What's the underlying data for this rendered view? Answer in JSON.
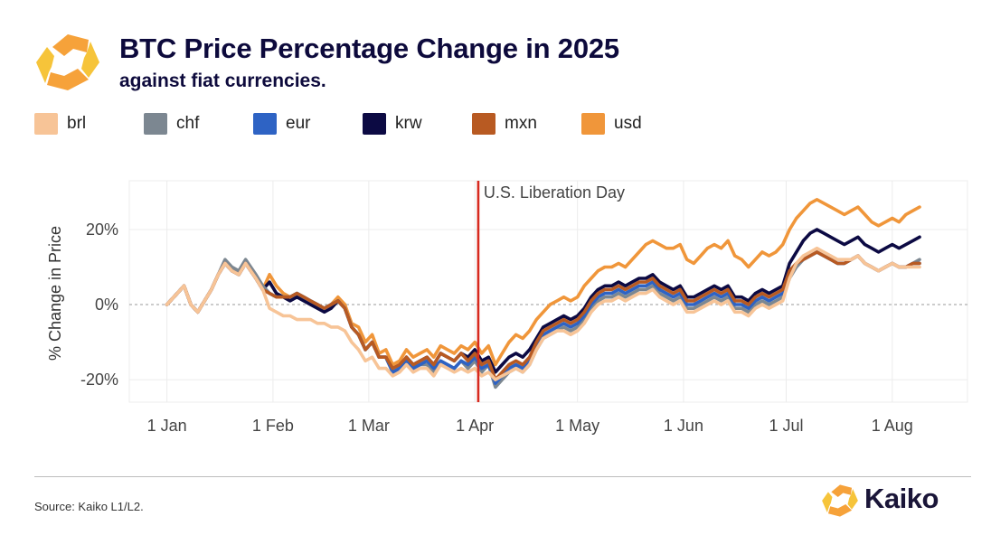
{
  "header": {
    "title": "BTC Price Percentage Change in 2025",
    "subtitle": "against fiat currencies."
  },
  "footer": {
    "source": "Source: Kaiko L1/L2.",
    "brand": "Kaiko"
  },
  "colors": {
    "brl": "#f7c497",
    "chf": "#7c8791",
    "eur": "#2e63c4",
    "krw": "#0c0a43",
    "mxn": "#b85a22",
    "usd": "#f0963a",
    "event_line": "#d72a1f",
    "logo_orange": "#f6a23a",
    "logo_yellow": "#f6c43a"
  },
  "chart_data": {
    "type": "line",
    "title": "BTC Price Percentage Change in 2025",
    "subtitle": "against fiat currencies.",
    "ylabel": "% Change in Price",
    "xlabel": "",
    "x_ticks": [
      "1 Jan",
      "1 Feb",
      "1 Mar",
      "1 Apr",
      "1 May",
      "1 Jun",
      "1 Jul",
      "1 Aug"
    ],
    "x_tick_days": [
      0,
      31,
      59,
      90,
      120,
      151,
      181,
      212
    ],
    "xlim": [
      "2024-12-21",
      "2025-08-23"
    ],
    "y_ticks": [
      "-20%",
      "0%",
      "20%"
    ],
    "y_tick_values": [
      -20,
      0,
      20
    ],
    "ylim": [
      -26,
      33
    ],
    "grid": true,
    "legend": "top-left",
    "annotation": {
      "label": "U.S. Liberation Day",
      "date": "2025-04-02",
      "day": 91
    },
    "day_points": [
      0,
      3,
      5,
      7,
      9,
      11,
      13,
      15,
      17,
      19,
      21,
      23,
      26,
      28,
      30,
      32,
      34,
      36,
      38,
      40,
      42,
      44,
      46,
      48,
      50,
      52,
      54,
      56,
      58,
      60,
      62,
      64,
      66,
      68,
      70,
      72,
      74,
      76,
      78,
      80,
      82,
      84,
      86,
      88,
      90,
      92,
      94,
      96,
      98,
      100,
      102,
      104,
      106,
      108,
      110,
      112,
      114,
      116,
      118,
      120,
      122,
      124,
      126,
      128,
      130,
      132,
      134,
      136,
      138,
      140,
      142,
      144,
      146,
      148,
      150,
      152,
      154,
      156,
      158,
      160,
      162,
      164,
      166,
      168,
      170,
      172,
      174,
      176,
      178,
      180,
      182,
      184,
      186,
      188,
      190,
      192,
      194,
      196,
      198,
      200,
      202,
      204,
      206,
      208,
      210,
      212,
      214,
      216,
      218,
      220
    ],
    "series": [
      {
        "name": "usd",
        "values": [
          0,
          3,
          5,
          0,
          -2,
          1,
          4,
          8,
          11,
          9,
          8,
          11,
          7,
          4,
          8,
          5,
          3,
          2,
          3,
          2,
          1,
          0,
          -1,
          0,
          2,
          0,
          -5,
          -6,
          -10,
          -8,
          -13,
          -12,
          -16,
          -15,
          -12,
          -14,
          -13,
          -12,
          -14,
          -11,
          -12,
          -13,
          -11,
          -12,
          -10,
          -13,
          -11,
          -16,
          -13,
          -10,
          -8,
          -9,
          -7,
          -4,
          -2,
          0,
          1,
          2,
          1,
          2,
          5,
          7,
          9,
          10,
          10,
          11,
          10,
          12,
          14,
          16,
          17,
          16,
          15,
          15,
          16,
          12,
          11,
          13,
          15,
          16,
          15,
          17,
          13,
          12,
          10,
          12,
          14,
          13,
          14,
          16,
          20,
          23,
          25,
          27,
          28,
          27,
          26,
          25,
          24,
          25,
          26,
          24,
          22,
          21,
          22,
          23,
          22,
          24,
          25,
          26
        ]
      },
      {
        "name": "krw",
        "values": [
          0,
          3,
          5,
          0,
          -2,
          1,
          4,
          8,
          11,
          9,
          8,
          11,
          7,
          4,
          6,
          3,
          2,
          1,
          2,
          1,
          0,
          -1,
          -2,
          -1,
          1,
          -1,
          -6,
          -8,
          -12,
          -10,
          -14,
          -14,
          -18,
          -17,
          -14,
          -16,
          -15,
          -14,
          -16,
          -13,
          -14,
          -15,
          -13,
          -14,
          -12,
          -15,
          -14,
          -18,
          -16,
          -14,
          -13,
          -14,
          -12,
          -9,
          -6,
          -5,
          -4,
          -3,
          -4,
          -3,
          -1,
          2,
          4,
          5,
          5,
          6,
          5,
          6,
          7,
          7,
          8,
          6,
          5,
          4,
          5,
          2,
          2,
          3,
          4,
          5,
          4,
          5,
          2,
          2,
          1,
          3,
          4,
          3,
          4,
          5,
          11,
          14,
          17,
          19,
          20,
          19,
          18,
          17,
          16,
          17,
          18,
          16,
          15,
          14,
          15,
          16,
          15,
          16,
          17,
          18
        ]
      },
      {
        "name": "chf",
        "values": [
          0,
          3,
          5,
          0,
          -2,
          1,
          4,
          8,
          12,
          10,
          9,
          12,
          8,
          5,
          3,
          2,
          2,
          2,
          3,
          2,
          1,
          0,
          -1,
          0,
          1,
          -1,
          -6,
          -8,
          -12,
          -10,
          -14,
          -14,
          -18,
          -17,
          -15,
          -17,
          -16,
          -16,
          -18,
          -15,
          -16,
          -17,
          -15,
          -17,
          -15,
          -18,
          -16,
          -22,
          -20,
          -18,
          -17,
          -18,
          -16,
          -12,
          -9,
          -8,
          -7,
          -6,
          -7,
          -6,
          -4,
          -1,
          1,
          2,
          2,
          3,
          2,
          3,
          4,
          4,
          5,
          3,
          2,
          1,
          2,
          -1,
          -1,
          0,
          1,
          2,
          1,
          2,
          -1,
          -1,
          -2,
          0,
          1,
          0,
          1,
          2,
          7,
          10,
          12,
          13,
          14,
          13,
          12,
          11,
          11,
          12,
          13,
          11,
          10,
          9,
          10,
          11,
          10,
          10,
          11,
          12
        ]
      },
      {
        "name": "eur",
        "values": [
          0,
          3,
          5,
          0,
          -2,
          1,
          4,
          8,
          11,
          9,
          8,
          11,
          7,
          4,
          3,
          2,
          2,
          2,
          3,
          2,
          1,
          0,
          -1,
          0,
          1,
          -1,
          -6,
          -8,
          -12,
          -10,
          -14,
          -14,
          -18,
          -17,
          -15,
          -17,
          -16,
          -15,
          -17,
          -15,
          -16,
          -17,
          -15,
          -16,
          -14,
          -17,
          -16,
          -21,
          -19,
          -17,
          -16,
          -17,
          -15,
          -11,
          -8,
          -7,
          -6,
          -5,
          -6,
          -5,
          -3,
          0,
          2,
          3,
          3,
          4,
          3,
          4,
          5,
          5,
          6,
          4,
          3,
          2,
          3,
          0,
          0,
          1,
          2,
          3,
          2,
          3,
          0,
          0,
          -1,
          1,
          2,
          1,
          2,
          3,
          8,
          11,
          12,
          13,
          14,
          13,
          12,
          11,
          11,
          12,
          13,
          11,
          10,
          9,
          10,
          11,
          10,
          10,
          11,
          11
        ]
      },
      {
        "name": "mxn",
        "values": [
          0,
          3,
          5,
          0,
          -2,
          1,
          4,
          8,
          11,
          9,
          8,
          11,
          7,
          4,
          3,
          2,
          2,
          2,
          3,
          2,
          1,
          0,
          -1,
          0,
          1,
          -1,
          -6,
          -8,
          -12,
          -10,
          -14,
          -14,
          -17,
          -16,
          -14,
          -16,
          -15,
          -14,
          -16,
          -13,
          -14,
          -15,
          -13,
          -15,
          -13,
          -16,
          -15,
          -20,
          -18,
          -16,
          -15,
          -16,
          -14,
          -10,
          -7,
          -6,
          -5,
          -4,
          -5,
          -4,
          -2,
          1,
          3,
          4,
          4,
          5,
          4,
          5,
          6,
          6,
          7,
          5,
          4,
          3,
          4,
          1,
          1,
          2,
          3,
          4,
          3,
          4,
          1,
          1,
          0,
          2,
          3,
          2,
          3,
          4,
          9,
          11,
          12,
          13,
          14,
          13,
          12,
          11,
          11,
          12,
          13,
          11,
          10,
          9,
          10,
          11,
          10,
          10,
          11,
          11
        ]
      },
      {
        "name": "brl",
        "values": [
          0,
          3,
          5,
          0,
          -2,
          1,
          4,
          8,
          11,
          9,
          8,
          11,
          7,
          4,
          -1,
          -2,
          -3,
          -3,
          -4,
          -4,
          -4,
          -5,
          -5,
          -6,
          -6,
          -7,
          -10,
          -12,
          -15,
          -14,
          -17,
          -17,
          -19,
          -18,
          -16,
          -18,
          -17,
          -17,
          -19,
          -16,
          -17,
          -18,
          -17,
          -18,
          -17,
          -19,
          -18,
          -20,
          -19,
          -18,
          -17,
          -18,
          -16,
          -12,
          -9,
          -8,
          -7,
          -7,
          -8,
          -7,
          -5,
          -2,
          0,
          1,
          1,
          2,
          1,
          2,
          3,
          3,
          4,
          2,
          1,
          0,
          1,
          -2,
          -2,
          -1,
          0,
          1,
          0,
          1,
          -2,
          -2,
          -3,
          -1,
          0,
          -1,
          0,
          1,
          7,
          11,
          13,
          14,
          15,
          14,
          13,
          12,
          12,
          12,
          13,
          11,
          10,
          9,
          10,
          11,
          10,
          10,
          10,
          10
        ]
      }
    ]
  },
  "legend_items": [
    "brl",
    "chf",
    "eur",
    "krw",
    "mxn",
    "usd"
  ],
  "icons": {
    "header_logo": "kaiko-logo-icon",
    "footer_logo": "kaiko-logo-icon"
  }
}
